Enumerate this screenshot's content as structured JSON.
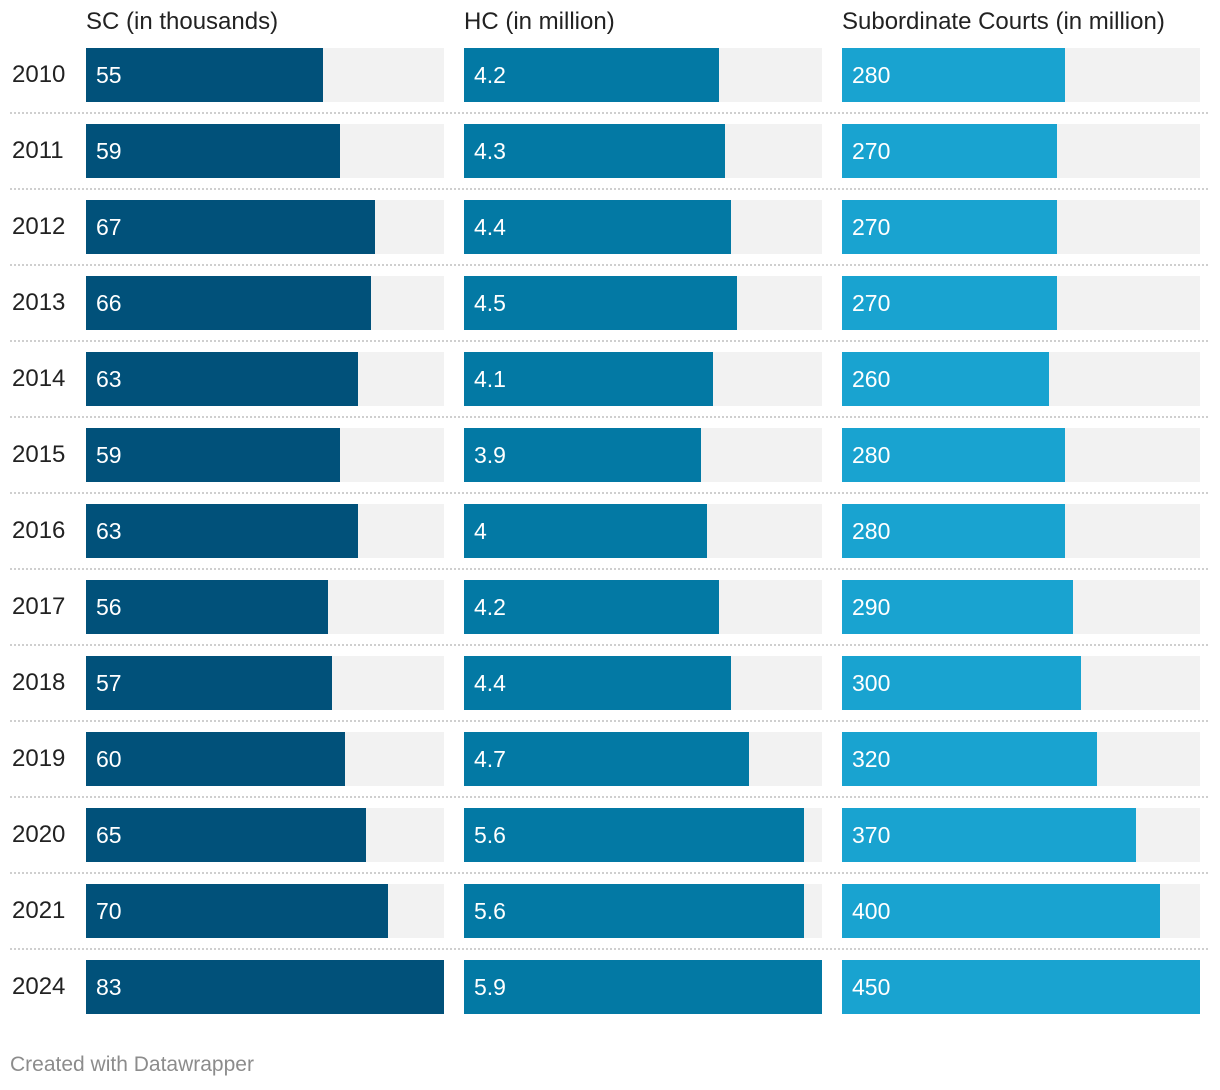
{
  "chart_data": {
    "type": "bar",
    "orientation": "horizontal",
    "categories": [
      "2010",
      "2011",
      "2012",
      "2013",
      "2014",
      "2015",
      "2016",
      "2017",
      "2018",
      "2019",
      "2020",
      "2021",
      "2024"
    ],
    "series": [
      {
        "name": "SC (in thousands)",
        "color": "#01517a",
        "values": [
          55,
          59,
          67,
          66,
          63,
          59,
          63,
          56,
          57,
          60,
          65,
          70,
          83
        ],
        "labels": [
          "55",
          "59",
          "67",
          "66",
          "63",
          "59",
          "63",
          "56",
          "57",
          "60",
          "65",
          "70",
          "83"
        ],
        "max": 83
      },
      {
        "name": "HC (in million)",
        "color": "#0379a4",
        "values": [
          4.2,
          4.3,
          4.4,
          4.5,
          4.1,
          3.9,
          4,
          4.2,
          4.4,
          4.7,
          5.6,
          5.6,
          5.9
        ],
        "labels": [
          "4.2",
          "4.3",
          "4.4",
          "4.5",
          "4.1",
          "3.9",
          "4",
          "4.2",
          "4.4",
          "4.7",
          "5.6",
          "5.6",
          "5.9"
        ],
        "max": 5.9
      },
      {
        "name": "Subordinate Courts (in million)",
        "color": "#19a3d0",
        "values": [
          280,
          270,
          270,
          270,
          260,
          280,
          280,
          290,
          300,
          320,
          370,
          400,
          450
        ],
        "labels": [
          "280",
          "270",
          "270",
          "270",
          "260",
          "280",
          "280",
          "290",
          "300",
          "320",
          "370",
          "400",
          "450"
        ],
        "max": 450
      }
    ],
    "background_color": "#f2f2f2",
    "legend": "column headers at top"
  },
  "footer": {
    "credit": "Created with Datawrapper"
  }
}
